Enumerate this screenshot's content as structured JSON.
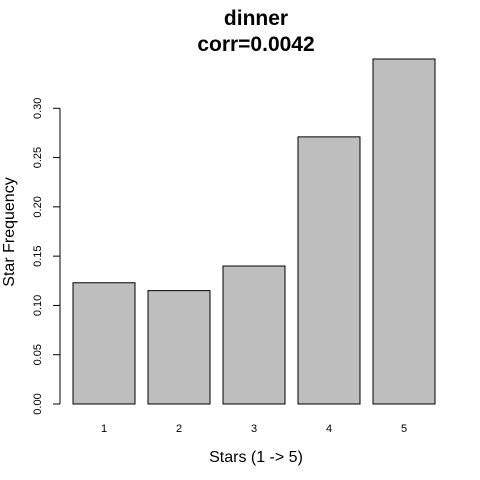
{
  "chart_data": {
    "type": "bar",
    "title": "dinner",
    "subtitle": "corr=0.0042",
    "xlabel": "Stars (1 -> 5)",
    "ylabel": "Star Frequency",
    "categories": [
      "1",
      "2",
      "3",
      "4",
      "5"
    ],
    "values": [
      0.123,
      0.115,
      0.14,
      0.271,
      0.35
    ],
    "ylim": [
      0,
      0.35
    ],
    "yticks": [
      "0.00",
      "0.05",
      "0.10",
      "0.15",
      "0.20",
      "0.25",
      "0.30"
    ],
    "grid": false,
    "bar_color": "#bebebe",
    "border_color": "#000000"
  }
}
